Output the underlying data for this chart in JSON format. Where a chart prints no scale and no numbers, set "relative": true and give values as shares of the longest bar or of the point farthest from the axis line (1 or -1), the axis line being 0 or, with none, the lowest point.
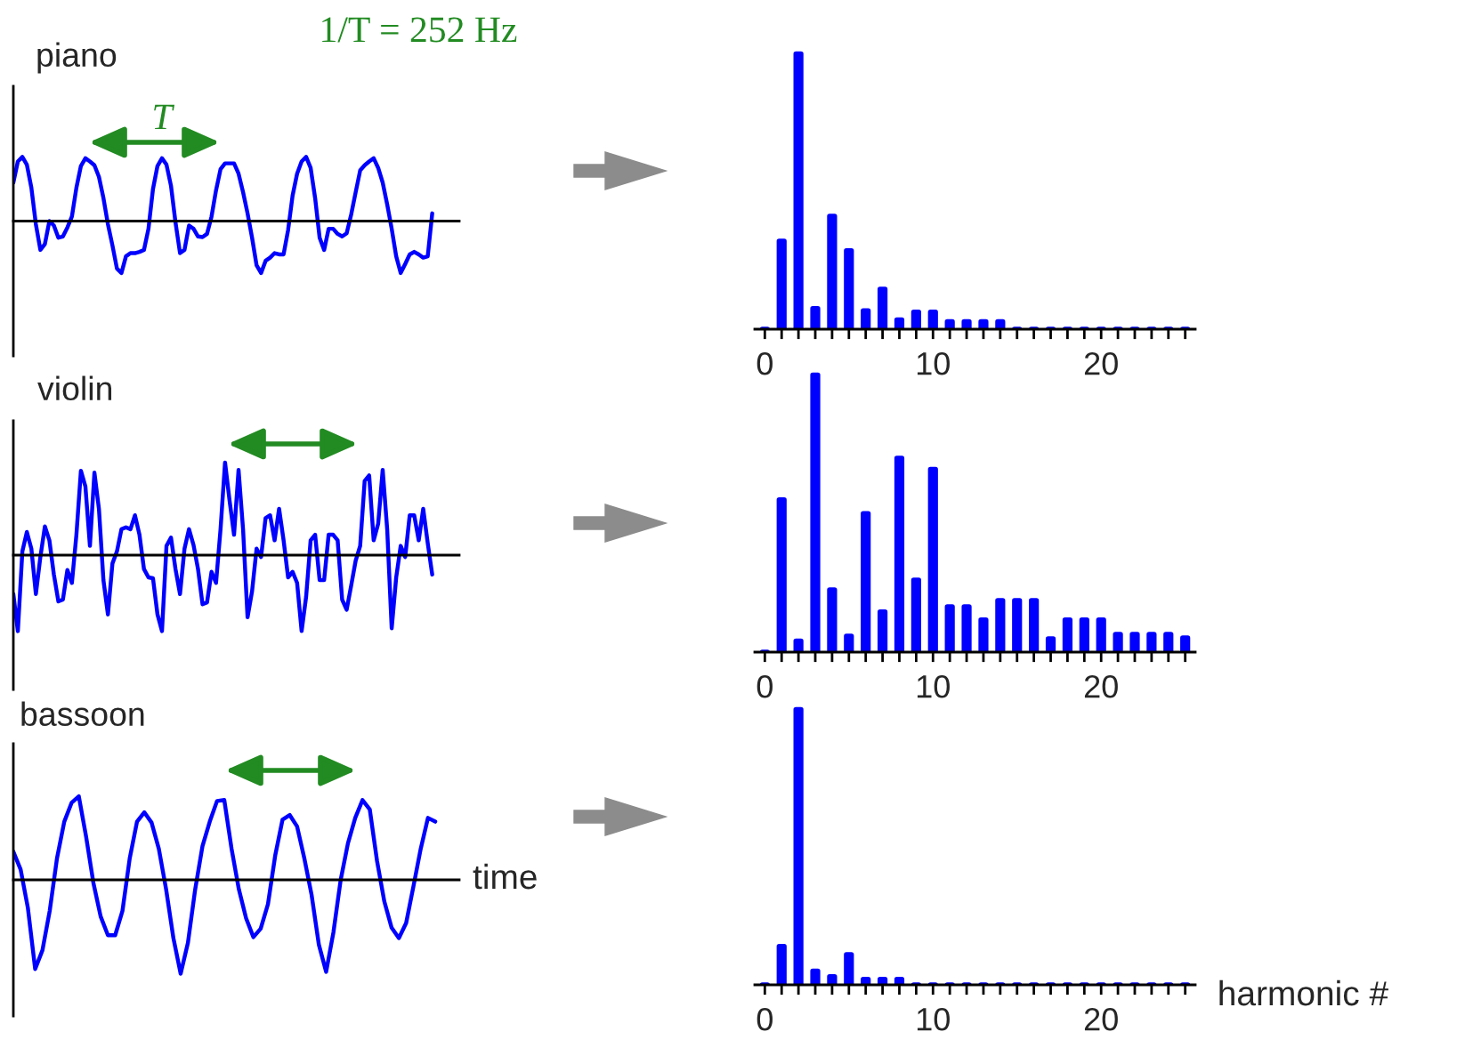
{
  "chart_data": [
    {
      "type": "line",
      "title": "piano",
      "relative": true,
      "color": "#0000ff",
      "annotations": [
        "1/T = 252 Hz",
        "T"
      ],
      "categories": [
        null,
        null,
        null,
        null,
        null,
        null,
        null,
        null,
        null,
        null,
        null,
        null,
        null,
        null,
        null,
        null,
        null,
        null,
        null,
        null,
        null,
        null,
        null,
        null,
        null,
        null,
        null,
        null,
        null,
        null,
        null,
        null,
        null,
        null,
        null,
        null,
        null,
        null,
        null,
        null,
        null,
        null,
        null,
        null,
        null,
        null,
        null,
        null,
        null,
        null,
        null,
        null,
        null,
        null,
        null,
        null,
        null,
        null,
        null,
        null,
        null,
        null,
        null,
        null,
        null,
        null,
        null,
        null,
        null,
        null,
        null,
        null,
        null,
        null,
        null,
        null,
        null,
        null,
        null,
        null,
        null,
        null,
        null,
        null,
        null,
        null,
        null,
        null,
        null,
        null,
        null,
        null,
        null,
        null
      ],
      "values": [
        0.6,
        0.93,
        1.0,
        0.88,
        0.52,
        -0.05,
        -0.45,
        -0.36,
        0.0,
        -0.07,
        -0.26,
        -0.24,
        -0.1,
        0.07,
        0.52,
        0.86,
        0.98,
        0.93,
        0.87,
        0.69,
        0.36,
        -0.05,
        -0.38,
        -0.74,
        -0.81,
        -0.55,
        -0.5,
        -0.5,
        -0.48,
        -0.45,
        -0.12,
        0.5,
        0.86,
        0.98,
        0.88,
        0.55,
        -0.02,
        -0.5,
        -0.45,
        -0.07,
        -0.12,
        -0.24,
        -0.25,
        -0.2,
        0.07,
        0.48,
        0.81,
        0.9,
        0.9,
        0.9,
        0.74,
        0.45,
        0.12,
        -0.26,
        -0.69,
        -0.81,
        -0.62,
        -0.57,
        -0.5,
        -0.52,
        -0.52,
        -0.14,
        0.4,
        0.74,
        0.93,
        1.0,
        0.83,
        0.36,
        -0.26,
        -0.45,
        -0.12,
        -0.12,
        -0.2,
        -0.24,
        -0.19,
        0.1,
        0.45,
        0.79,
        0.87,
        0.93,
        0.98,
        0.83,
        0.6,
        0.26,
        -0.12,
        -0.55,
        -0.81,
        -0.67,
        -0.52,
        -0.48,
        -0.52,
        -0.57,
        -0.55,
        0.12
      ]
    },
    {
      "type": "bar",
      "relative": true,
      "color": "#0000ff",
      "x": [
        0,
        1,
        2,
        3,
        4,
        5,
        6,
        7,
        8,
        9,
        10,
        11,
        12,
        13,
        14,
        15,
        16,
        17,
        18,
        19,
        20,
        21,
        22,
        23,
        24,
        25
      ],
      "values": [
        0,
        0.32,
        1.0,
        0.075,
        0.41,
        0.285,
        0.067,
        0.145,
        0.034,
        0.062,
        0.062,
        0.027,
        0.027,
        0.027,
        0.027,
        0,
        0,
        0,
        0,
        0,
        0,
        0,
        0,
        0,
        0,
        0
      ],
      "xlim": [
        -0.6,
        25.6
      ],
      "xticks": [
        0,
        {
          "value": 1,
          "label": null
        },
        {
          "value": 2,
          "label": null
        },
        {
          "value": 3,
          "label": null
        },
        {
          "value": 4,
          "label": null
        },
        {
          "value": 5,
          "label": null
        },
        {
          "value": 6,
          "label": null
        },
        {
          "value": 7,
          "label": null
        },
        {
          "value": 8,
          "label": null
        },
        {
          "value": 9,
          "label": null
        },
        10,
        {
          "value": 11,
          "label": null
        },
        {
          "value": 12,
          "label": null
        },
        {
          "value": 13,
          "label": null
        },
        {
          "value": 14,
          "label": null
        },
        {
          "value": 15,
          "label": null
        },
        {
          "value": 16,
          "label": null
        },
        {
          "value": 17,
          "label": null
        },
        {
          "value": 18,
          "label": null
        },
        {
          "value": 19,
          "label": null
        },
        20,
        {
          "value": 21,
          "label": null
        },
        {
          "value": 22,
          "label": null
        },
        {
          "value": 23,
          "label": null
        },
        {
          "value": 24,
          "label": null
        },
        {
          "value": 25,
          "label": null
        }
      ]
    },
    {
      "type": "line",
      "title": "violin",
      "relative": true,
      "color": "#0000ff",
      "categories": [
        null,
        null,
        null,
        null,
        null,
        null,
        null,
        null,
        null,
        null,
        null,
        null,
        null,
        null,
        null,
        null,
        null,
        null,
        null,
        null,
        null,
        null,
        null,
        null,
        null,
        null,
        null,
        null,
        null,
        null,
        null,
        null,
        null,
        null,
        null,
        null,
        null,
        null,
        null,
        null,
        null,
        null,
        null,
        null,
        null,
        null,
        null,
        null,
        null,
        null,
        null,
        null,
        null,
        null,
        null,
        null,
        null,
        null,
        null,
        null,
        null,
        null,
        null,
        null,
        null,
        null,
        null,
        null,
        null,
        null,
        null,
        null,
        null,
        null,
        null,
        null,
        null,
        null,
        null,
        null,
        null,
        null,
        null,
        null,
        null,
        null,
        null,
        null,
        null,
        null,
        null,
        null,
        null,
        null
      ],
      "values": [
        -0.42,
        -0.82,
        0.04,
        0.25,
        0.07,
        -0.42,
        -0.02,
        0.31,
        0.16,
        -0.21,
        -0.5,
        -0.48,
        -0.16,
        -0.3,
        0.22,
        0.91,
        0.74,
        0.1,
        0.89,
        0.5,
        -0.27,
        -0.64,
        -0.09,
        0.04,
        0.28,
        0.3,
        0.28,
        0.43,
        0.22,
        -0.15,
        -0.24,
        -0.25,
        -0.64,
        -0.82,
        0.1,
        0.19,
        -0.15,
        -0.42,
        0.07,
        0.28,
        0.11,
        -0.15,
        -0.53,
        -0.51,
        -0.18,
        -0.3,
        0.28,
        1.0,
        0.59,
        0.22,
        0.92,
        0.28,
        -0.67,
        -0.39,
        0.07,
        -0.02,
        0.4,
        0.43,
        0.16,
        0.5,
        0.16,
        -0.24,
        -0.18,
        -0.3,
        -0.82,
        -0.45,
        0.16,
        0.22,
        -0.27,
        -0.27,
        0.22,
        0.22,
        0.16,
        -0.48,
        -0.59,
        -0.33,
        -0.06,
        0.1,
        0.8,
        0.86,
        0.16,
        0.34,
        0.92,
        0.28,
        -0.79,
        -0.24,
        0.1,
        -0.02,
        0.43,
        0.43,
        0.16,
        0.5,
        0.13,
        -0.21
      ]
    },
    {
      "type": "bar",
      "relative": true,
      "color": "#0000ff",
      "x": [
        0,
        1,
        2,
        3,
        4,
        5,
        6,
        7,
        8,
        9,
        10,
        11,
        12,
        13,
        14,
        15,
        16,
        17,
        18,
        19,
        20,
        21,
        22,
        23,
        24,
        25
      ],
      "values": [
        0,
        0.55,
        0.04,
        1.0,
        0.225,
        0.058,
        0.5,
        0.145,
        0.7,
        0.26,
        0.66,
        0.164,
        0.164,
        0.116,
        0.186,
        0.186,
        0.186,
        0.048,
        0.116,
        0.116,
        0.116,
        0.064,
        0.064,
        0.064,
        0.064,
        0.051
      ],
      "xlim": [
        -0.6,
        25.6
      ],
      "xticks": [
        0,
        {
          "value": 1,
          "label": null
        },
        {
          "value": 2,
          "label": null
        },
        {
          "value": 3,
          "label": null
        },
        {
          "value": 4,
          "label": null
        },
        {
          "value": 5,
          "label": null
        },
        {
          "value": 6,
          "label": null
        },
        {
          "value": 7,
          "label": null
        },
        {
          "value": 8,
          "label": null
        },
        {
          "value": 9,
          "label": null
        },
        10,
        {
          "value": 11,
          "label": null
        },
        {
          "value": 12,
          "label": null
        },
        {
          "value": 13,
          "label": null
        },
        {
          "value": 14,
          "label": null
        },
        {
          "value": 15,
          "label": null
        },
        {
          "value": 16,
          "label": null
        },
        {
          "value": 17,
          "label": null
        },
        {
          "value": 18,
          "label": null
        },
        {
          "value": 19,
          "label": null
        },
        20,
        {
          "value": 21,
          "label": null
        },
        {
          "value": 22,
          "label": null
        },
        {
          "value": 23,
          "label": null
        },
        {
          "value": 24,
          "label": null
        },
        {
          "value": 25,
          "label": null
        }
      ]
    },
    {
      "type": "line",
      "title": "bassoon",
      "xlabel": "time",
      "relative": true,
      "color": "#0000ff",
      "categories": [
        null,
        null,
        null,
        null,
        null,
        null,
        null,
        null,
        null,
        null,
        null,
        null,
        null,
        null,
        null,
        null,
        null,
        null,
        null,
        null,
        null,
        null,
        null,
        null,
        null,
        null,
        null,
        null,
        null,
        null,
        null,
        null,
        null,
        null,
        null,
        null,
        null,
        null,
        null,
        null,
        null,
        null,
        null,
        null,
        null,
        null,
        null,
        null,
        null,
        null,
        null,
        null,
        null,
        null,
        null,
        null,
        null,
        null,
        null
      ],
      "values": [
        0.3,
        0.11,
        -0.3,
        -0.95,
        -0.75,
        -0.33,
        0.23,
        0.62,
        0.82,
        0.89,
        0.46,
        -0.03,
        -0.39,
        -0.59,
        -0.59,
        -0.33,
        0.23,
        0.62,
        0.72,
        0.61,
        0.33,
        -0.1,
        -0.62,
        -1.0,
        -0.67,
        -0.1,
        0.36,
        0.62,
        0.84,
        0.85,
        0.33,
        -0.1,
        -0.41,
        -0.61,
        -0.52,
        -0.26,
        0.26,
        0.64,
        0.69,
        0.57,
        0.23,
        -0.16,
        -0.69,
        -0.98,
        -0.56,
        0.0,
        0.39,
        0.66,
        0.85,
        0.75,
        0.2,
        -0.23,
        -0.51,
        -0.62,
        -0.46,
        -0.07,
        0.33,
        0.66,
        0.62
      ]
    },
    {
      "type": "bar",
      "relative": true,
      "color": "#0000ff",
      "xlabel": "harmonic #",
      "x": [
        0,
        1,
        2,
        3,
        4,
        5,
        6,
        7,
        8,
        9,
        10,
        11,
        12,
        13,
        14,
        15,
        16,
        17,
        18,
        19,
        20,
        21,
        22,
        23,
        24,
        25
      ],
      "values": [
        0,
        0.14,
        1.0,
        0.05,
        0.03,
        0.11,
        0.02,
        0.02,
        0.02,
        0,
        0,
        0,
        0,
        0,
        0,
        0,
        0,
        0,
        0,
        0,
        0,
        0,
        0,
        0,
        0,
        0
      ],
      "xlim": [
        -0.6,
        25.6
      ],
      "xticks": [
        0,
        {
          "value": 1,
          "label": null
        },
        {
          "value": 2,
          "label": null
        },
        {
          "value": 3,
          "label": null
        },
        {
          "value": 4,
          "label": null
        },
        {
          "value": 5,
          "label": null
        },
        {
          "value": 6,
          "label": null
        },
        {
          "value": 7,
          "label": null
        },
        {
          "value": 8,
          "label": null
        },
        {
          "value": 9,
          "label": null
        },
        10,
        {
          "value": 11,
          "label": null
        },
        {
          "value": 12,
          "label": null
        },
        {
          "value": 13,
          "label": null
        },
        {
          "value": 14,
          "label": null
        },
        {
          "value": 15,
          "label": null
        },
        {
          "value": 16,
          "label": null
        },
        {
          "value": 17,
          "label": null
        },
        {
          "value": 18,
          "label": null
        },
        {
          "value": 19,
          "label": null
        },
        20,
        {
          "value": 21,
          "label": null
        },
        {
          "value": 22,
          "label": null
        },
        {
          "value": 23,
          "label": null
        },
        {
          "value": 24,
          "label": null
        },
        {
          "value": 25,
          "label": null
        }
      ]
    }
  ]
}
